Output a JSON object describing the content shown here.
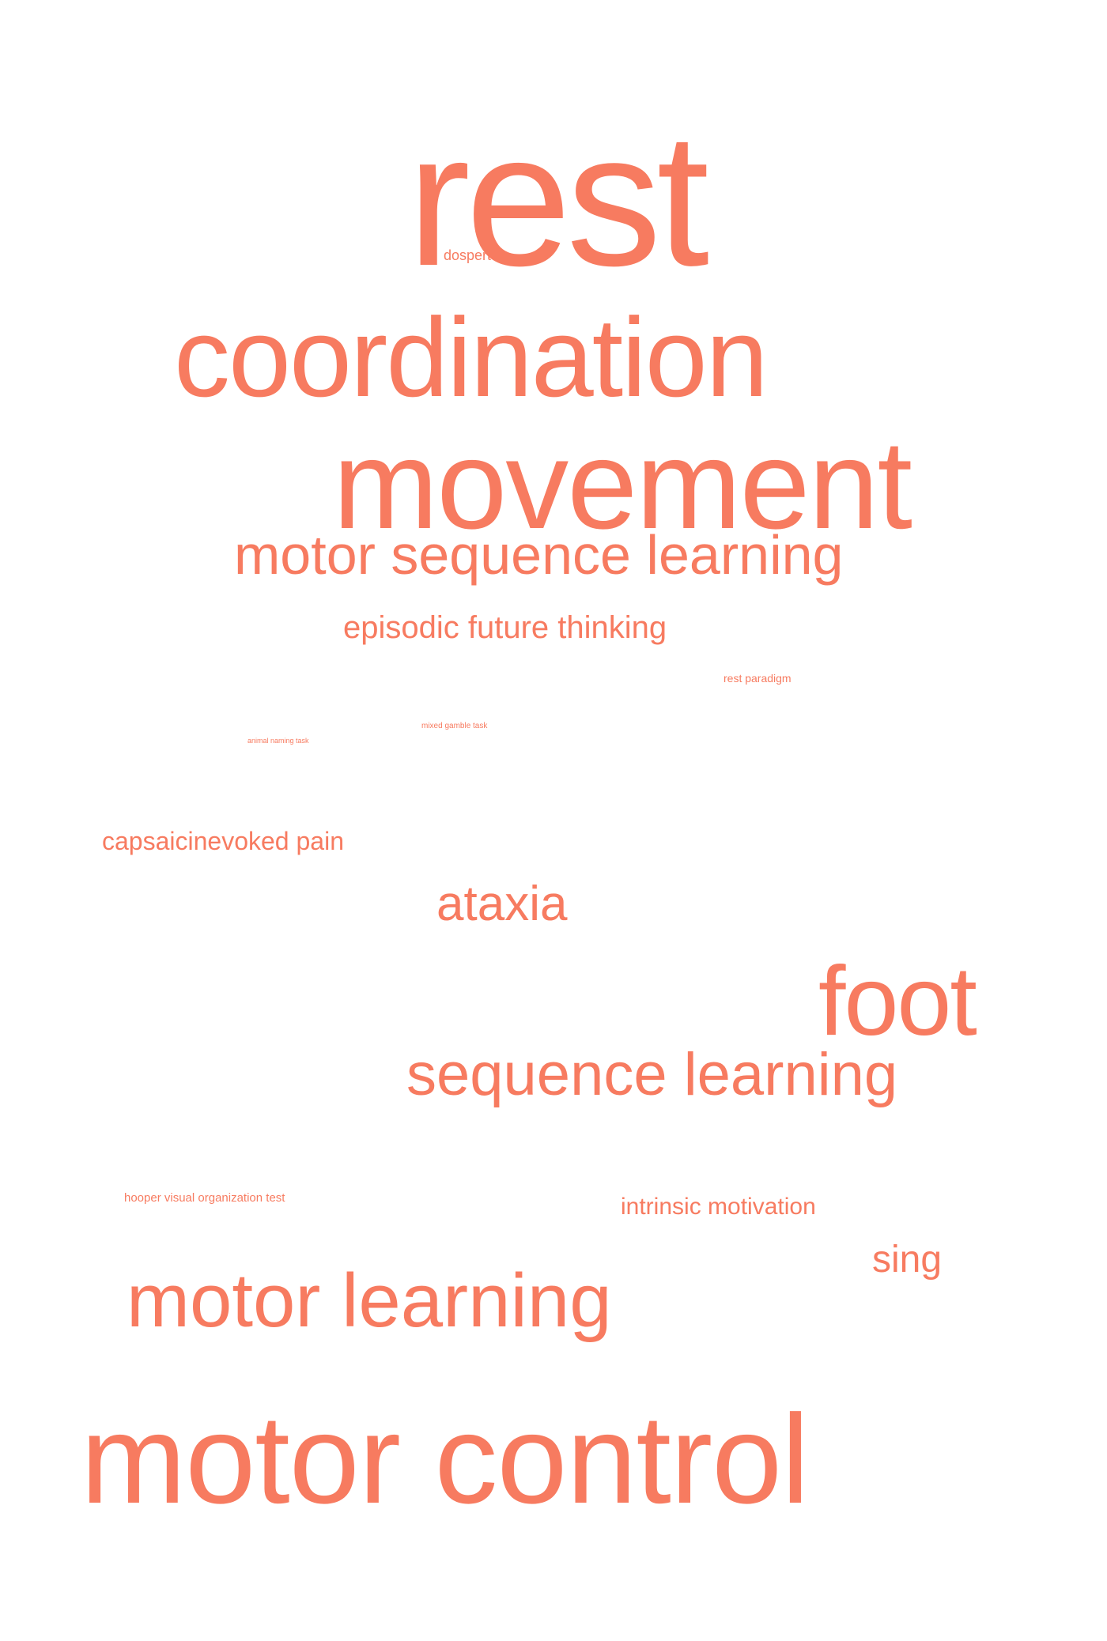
{
  "colors": {
    "background": "#ffffff",
    "word": "#f77b60"
  },
  "words": {
    "rest": "rest",
    "dospert": "dospert",
    "coordination": "coordination",
    "movement": "movement",
    "motor_sequence_learning": "motor sequence learning",
    "episodic_future_thinking": "episodic future thinking",
    "rest_paradigm": "rest paradigm",
    "mixed_gamble_task": "mixed gamble task",
    "animal_naming_task": "animal naming task",
    "capsaicinevoked_pain": "capsaicinevoked pain",
    "ataxia": "ataxia",
    "foot": "foot",
    "sequence_learning": "sequence learning",
    "hooper_visual_organization_test": "hooper visual organization test",
    "intrinsic_motivation": "intrinsic motivation",
    "sing": "sing",
    "motor_learning": "motor learning",
    "motor_control": "motor control"
  }
}
